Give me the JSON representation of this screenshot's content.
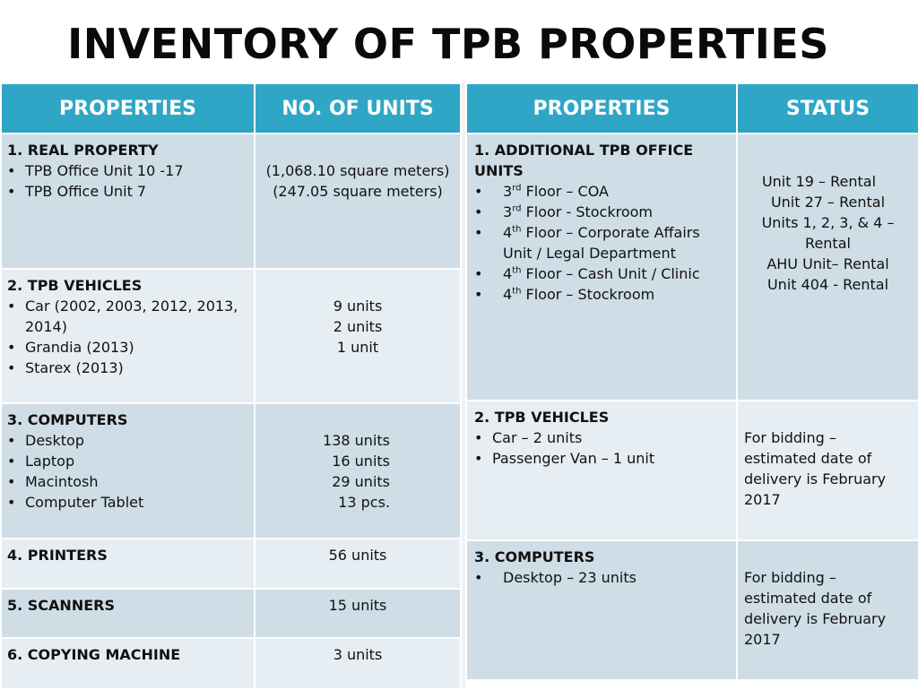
{
  "title": "INVENTORY OF TPB PROPERTIES",
  "left_table": {
    "headers": [
      "PROPERTIES",
      "NO. OF UNITS"
    ],
    "rows": [
      {
        "heading": "1.  REAL PROPERTY",
        "items": [
          "TPB Office Unit 10 -17",
          "TPB Office Unit 7"
        ],
        "values": [
          "(1,068.10 square meters)",
          "(247.05 square meters)"
        ]
      },
      {
        "heading": "2. TPB VEHICLES",
        "items": [
          "Car (2002, 2003, 2012, 2013, 2014)",
          "Grandia (2013)",
          "Starex (2013)"
        ],
        "values": [
          "9 units",
          "2 units",
          "1 unit"
        ]
      },
      {
        "heading": "3. COMPUTERS",
        "items": [
          "Desktop",
          "Laptop",
          "Macintosh",
          "Computer Tablet"
        ],
        "values": [
          "138 units",
          "16 units",
          "29 units",
          "13 pcs."
        ]
      },
      {
        "heading": "4. PRINTERS",
        "value": "56 units"
      },
      {
        "heading": "5. SCANNERS",
        "value": "15 units"
      },
      {
        "heading": "6. COPYING MACHINE",
        "value": "3 units"
      }
    ]
  },
  "right_table": {
    "headers": [
      "PROPERTIES",
      "STATUS"
    ],
    "rows": [
      {
        "heading": "1. ADDITIONAL TPB OFFICE UNITS",
        "items": [
          {
            "n": "3",
            "sup": "rd",
            "text": " Floor – COA"
          },
          {
            "n": "3",
            "sup": "rd",
            "text": " Floor -  Stockroom"
          },
          {
            "n": "4",
            "sup": "th",
            "text": " Floor – Corporate Affairs Unit / Legal Department"
          },
          {
            "n": "4",
            "sup": "th",
            "text": " Floor – Cash Unit / Clinic"
          },
          {
            "n": "4",
            "sup": "th",
            "text": " Floor – Stockroom"
          }
        ],
        "status": [
          "Unit 19 – Rental",
          "Unit 27 – Rental",
          "Units 1, 2, 3, & 4 – Rental",
          "AHU Unit– Rental",
          "Unit 404 - Rental"
        ]
      },
      {
        "heading": "2. TPB VEHICLES",
        "items": [
          "Car – 2 units",
          "Passenger Van – 1 unit"
        ],
        "status": "For bidding – estimated date of delivery is February 2017"
      },
      {
        "heading": "3. COMPUTERS",
        "items": [
          "Desktop – 23 units"
        ],
        "status": "For bidding – estimated date of delivery is February 2017"
      }
    ]
  }
}
